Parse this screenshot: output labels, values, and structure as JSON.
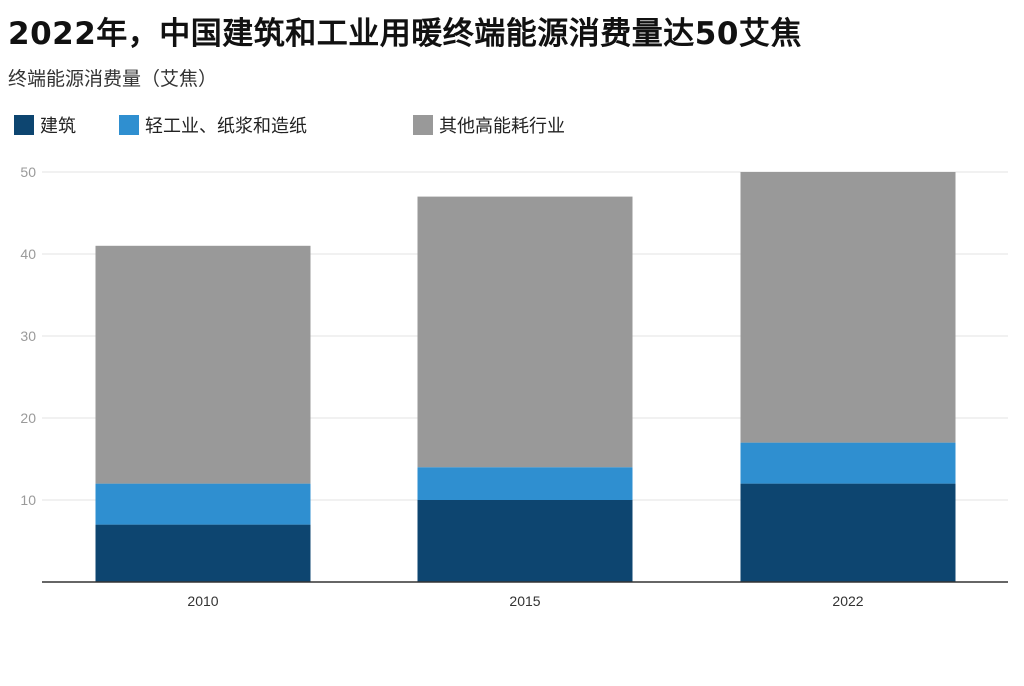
{
  "chart_data": {
    "type": "bar",
    "stacked": true,
    "title": "2022年，中国建筑和工业用暖终端能源消费量达50艾焦",
    "subtitle": "终端能源消费量（艾焦）",
    "categories": [
      "2010",
      "2015",
      "2022"
    ],
    "series": [
      {
        "name": "建筑",
        "color": "#0d4570",
        "values": [
          7,
          10,
          12
        ]
      },
      {
        "name": "轻工业、纸浆和造纸",
        "color": "#2f8fd0",
        "values": [
          5,
          4,
          5
        ]
      },
      {
        "name": "其他高能耗行业",
        "color": "#999999",
        "values": [
          29,
          33,
          33
        ]
      }
    ],
    "ylim": [
      0,
      50
    ],
    "yticks": [
      "10",
      "20",
      "30",
      "40",
      "50"
    ],
    "grid": true,
    "legend_position": "top-left"
  }
}
